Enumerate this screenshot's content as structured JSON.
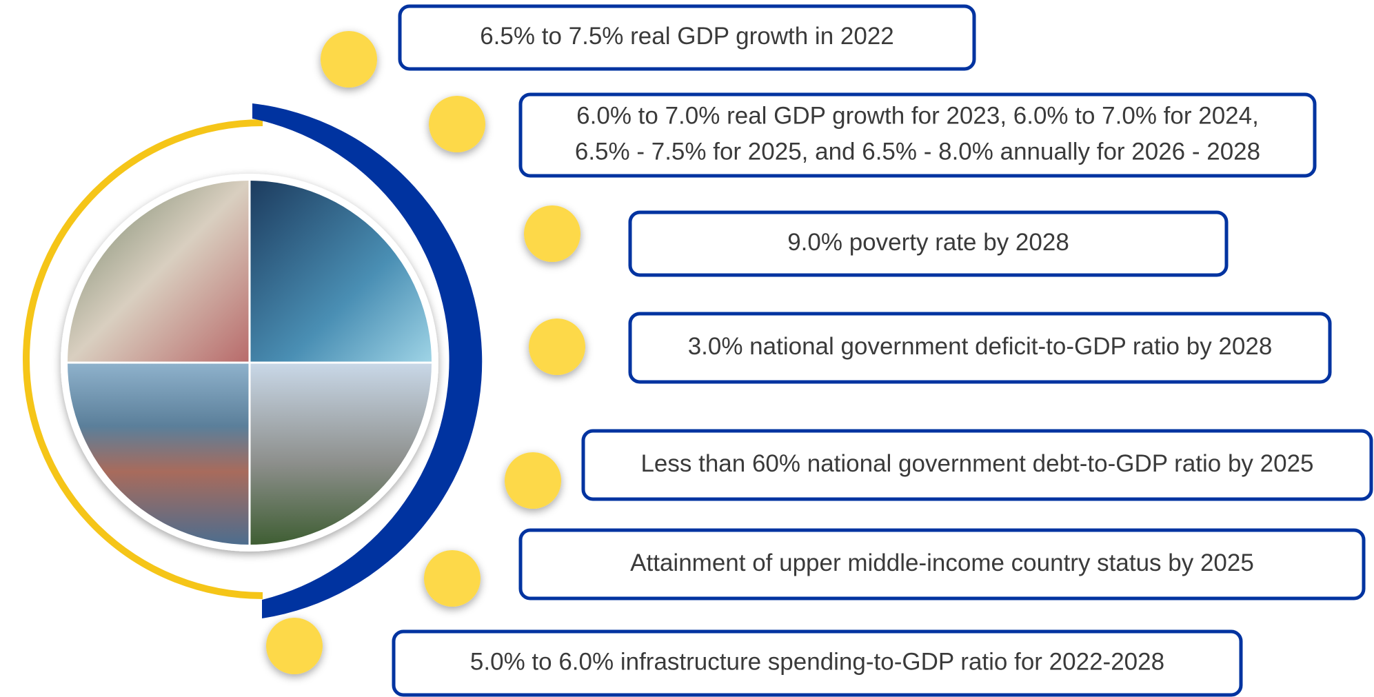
{
  "items": [
    {
      "lines": [
        "6.5% to 7.5% real GDP growth in 2022"
      ]
    },
    {
      "lines": [
        "6.0% to 7.0% real GDP growth for 2023, 6.0% to 7.0% for 2024,",
        "6.5% - 7.5% for 2025, and 6.5% - 8.0% annually for 2026 - 2028"
      ]
    },
    {
      "lines": [
        "9.0% poverty rate by 2028"
      ]
    },
    {
      "lines": [
        "3.0% national government deficit-to-GDP ratio by 2028"
      ]
    },
    {
      "lines": [
        "Less than 60% national government debt-to-GDP ratio by 2025"
      ]
    },
    {
      "lines": [
        "Attainment of upper middle-income country status by 2025"
      ]
    },
    {
      "lines": [
        "5.0% to 6.0% infrastructure spending-to-GDP ratio for 2022-2028"
      ]
    }
  ]
}
